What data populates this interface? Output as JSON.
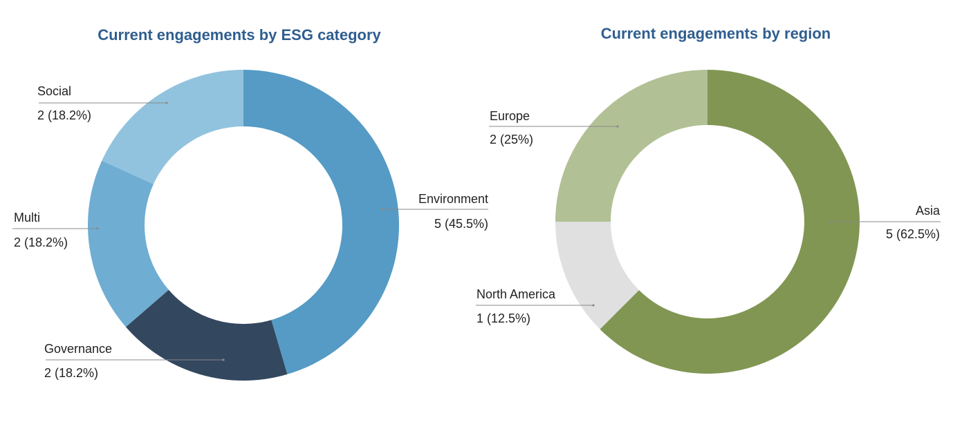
{
  "chart_data": [
    {
      "type": "pie",
      "variant": "donut",
      "title": "Current engagements by ESG category",
      "categories": [
        "Environment",
        "Governance",
        "Multi",
        "Social"
      ],
      "values": [
        5,
        2,
        2,
        2
      ],
      "value_labels": [
        "5 (45.5%)",
        "2 (18.2%)",
        "2 (18.2%)",
        "2 (18.2%)"
      ],
      "colors": [
        "#559bc5",
        "#33475f",
        "#6fadd3",
        "#92c3de"
      ],
      "start": "12 o'clock, clockwise"
    },
    {
      "type": "pie",
      "variant": "donut",
      "title": "Current engagements by region",
      "categories": [
        "Asia",
        "North America",
        "Europe"
      ],
      "values": [
        5,
        1,
        2
      ],
      "value_labels": [
        "5 (62.5%)",
        "1 (12.5%)",
        "2 (25%)"
      ],
      "colors": [
        "#819653",
        "#e0e0e0",
        "#b2c095"
      ],
      "start": "12 o'clock, clockwise"
    }
  ],
  "colors": {
    "title": "#2f5e8f",
    "leader": "#8a8a8a"
  }
}
